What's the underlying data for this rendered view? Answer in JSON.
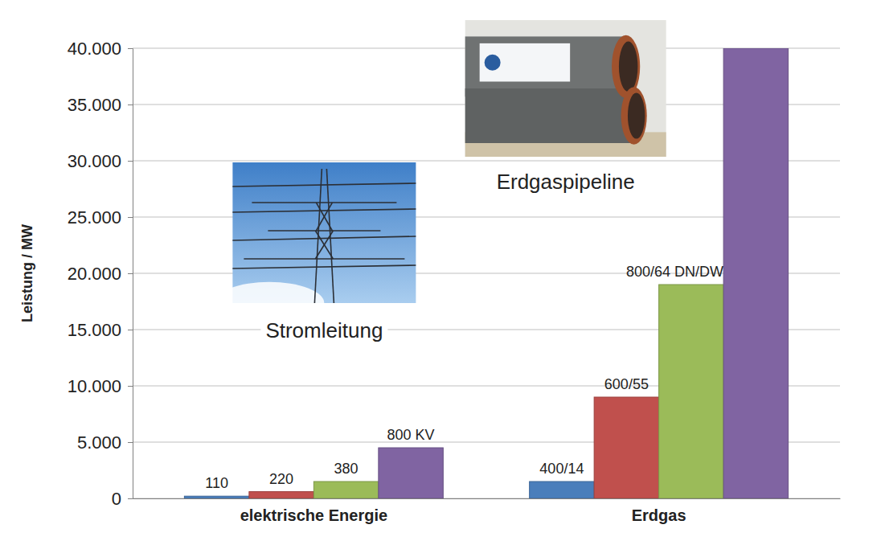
{
  "chart_data": {
    "type": "bar",
    "y_label": "Leistung / MW",
    "categories": [
      "elektrische Energie",
      "Erdgas"
    ],
    "series": [
      {
        "color": "#4a7ebb",
        "values": [
          200,
          1500
        ],
        "labels": [
          "110",
          "400/14"
        ]
      },
      {
        "color": "#c0504d",
        "values": [
          600,
          9000
        ],
        "labels": [
          "220",
          "600/55"
        ]
      },
      {
        "color": "#9bbb59",
        "values": [
          1500,
          19000
        ],
        "labels": [
          "380",
          "800/64 DN/DW"
        ]
      },
      {
        "color": "#8064a2",
        "values": [
          4500,
          40000
        ],
        "labels": [
          "800 KV",
          null
        ]
      }
    ],
    "annotations": [
      {
        "text": "Stromleitung"
      },
      {
        "text": "Erdgaspipeline"
      }
    ],
    "ylim": [
      0,
      40000
    ],
    "yticks": [
      0,
      {
        "value": 5000,
        "label": "5.000"
      },
      {
        "value": 10000,
        "label": "10.000"
      },
      {
        "value": 15000,
        "label": "15.000"
      },
      {
        "value": 20000,
        "label": "20.000"
      },
      {
        "value": 25000,
        "label": "25.000"
      },
      {
        "value": 30000,
        "label": "30.000"
      },
      {
        "value": 35000,
        "label": "35.000"
      },
      {
        "value": 40000,
        "label": "40.000"
      }
    ],
    "grid": true
  }
}
